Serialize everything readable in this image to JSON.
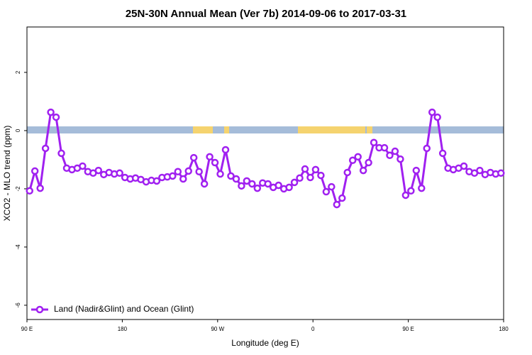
{
  "chart_data": {
    "type": "line",
    "title": "25N-30N Annual Mean (Ver 7b)   2014-09-06 to 2017-03-31",
    "x_label": "Longitude (deg E)",
    "y_label": "XCO2 - MLO trend (ppm)",
    "xlim": [
      90,
      540
    ],
    "ylim": [
      -6.49,
      3.56
    ],
    "xticks": [
      {
        "value": 90,
        "label": "90 E"
      },
      {
        "value": 180,
        "label": "180"
      },
      {
        "value": 270,
        "label": "90 W"
      },
      {
        "value": 360,
        "label": "0"
      },
      {
        "value": 450,
        "label": "90 E"
      },
      {
        "value": 540,
        "label": "180"
      }
    ],
    "yticks": [
      -6,
      -4,
      -2,
      0,
      2
    ],
    "legend": "bottom-left",
    "x": [
      92.5,
      97.5,
      102.5,
      107.5,
      112.5,
      117.5,
      122.5,
      127.5,
      132.5,
      137.5,
      142.5,
      147.5,
      152.5,
      157.5,
      162.5,
      167.5,
      172.5,
      177.5,
      182.5,
      187.5,
      192.5,
      197.5,
      202.5,
      207.5,
      212.5,
      217.5,
      222.5,
      227.5,
      232.5,
      237.5,
      242.5,
      247.5,
      252.5,
      257.5,
      262.5,
      267.5,
      272.5,
      277.5,
      282.5,
      287.5,
      292.5,
      297.5,
      302.5,
      307.5,
      312.5,
      317.5,
      322.5,
      327.5,
      332.5,
      337.5,
      342.5,
      347.5,
      352.5,
      357.5,
      362.5,
      367.5,
      372.5,
      377.5,
      382.5,
      387.5,
      392.5,
      397.5,
      402.5,
      407.5,
      412.5,
      417.5,
      422.5,
      427.5,
      432.5,
      437.5,
      442.5,
      447.5,
      452.5,
      457.5,
      462.5,
      467.5,
      472.5,
      477.5,
      482.5,
      487.5,
      492.5,
      497.5,
      502.5,
      507.5,
      512.5,
      517.5,
      522.5,
      527.5,
      532.5,
      537.5
    ],
    "series": [
      {
        "name": "Land (Nadir&Glint) and Ocean (Glint)",
        "color": "#a020f0",
        "values": [
          -2.07,
          -1.39,
          -1.98,
          -0.61,
          0.63,
          0.46,
          -0.78,
          -1.29,
          -1.34,
          -1.29,
          -1.22,
          -1.41,
          -1.46,
          -1.37,
          -1.51,
          -1.44,
          -1.49,
          -1.46,
          -1.61,
          -1.66,
          -1.63,
          -1.68,
          -1.76,
          -1.71,
          -1.73,
          -1.61,
          -1.59,
          -1.56,
          -1.41,
          -1.66,
          -1.39,
          -0.93,
          -1.41,
          -1.83,
          -0.9,
          -1.1,
          -1.49,
          -0.66,
          -1.56,
          -1.66,
          -1.9,
          -1.73,
          -1.83,
          -1.98,
          -1.8,
          -1.83,
          -1.95,
          -1.88,
          -2.0,
          -1.95,
          -1.78,
          -1.63,
          -1.32,
          -1.61,
          -1.34,
          -1.54,
          -2.1,
          -1.93,
          -2.54,
          -2.32,
          -1.44,
          -1.02,
          -0.9,
          -1.37,
          -1.1,
          -0.41,
          -0.59,
          -0.59,
          -0.85,
          -0.71,
          -0.98,
          -2.22,
          -2.07,
          -1.37,
          -1.98,
          -0.61,
          0.63,
          0.46,
          -0.78,
          -1.29,
          -1.34,
          -1.29,
          -1.22,
          -1.41,
          -1.46,
          -1.37,
          -1.51,
          -1.44,
          -1.49,
          -1.46
        ]
      }
    ]
  }
}
